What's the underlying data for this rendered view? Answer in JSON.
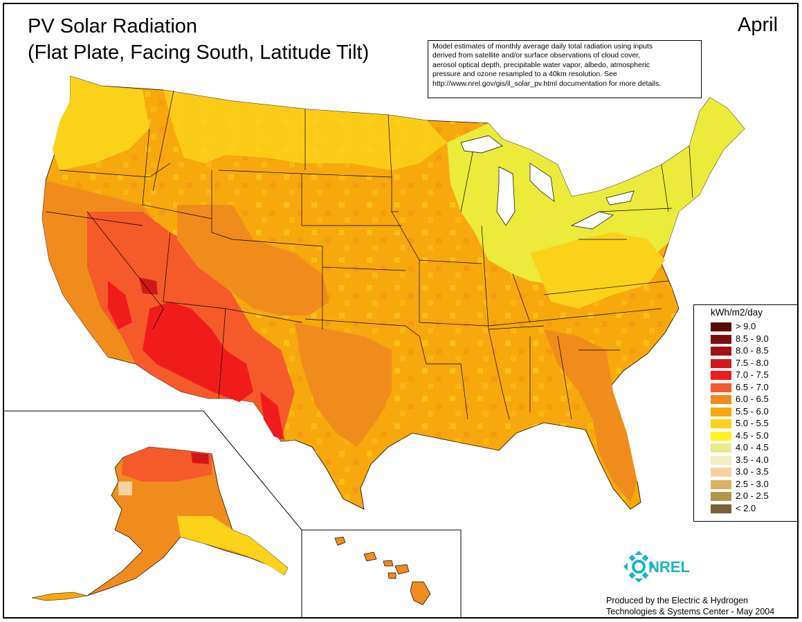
{
  "title": {
    "line1": "PV Solar Radiation",
    "line2": "(Flat Plate, Facing South, Latitude Tilt)"
  },
  "month": "April",
  "description": [
    "Model estimates of monthly average daily total radiation using inputs",
    "derived from satellite and/or surface observations of cloud cover,",
    "aerosol optical depth, precipitable water vapor, albedo, atmospheric",
    "pressure and ozone resampled to a 40km resolution.  See",
    "http://www.nrel.gov/gis/il_solar_pv.html documentation for more details."
  ],
  "legend": {
    "title": "kWh/m2/day",
    "items": [
      {
        "label": "> 9.0",
        "color": "#5a0a0a"
      },
      {
        "label": "8.5 - 9.0",
        "color": "#7d0e0e"
      },
      {
        "label": "8.0 - 8.5",
        "color": "#a50f0f"
      },
      {
        "label": "7.5 - 8.0",
        "color": "#d11818"
      },
      {
        "label": "7.0 - 7.5",
        "color": "#f01c1c"
      },
      {
        "label": "6.5 - 7.0",
        "color": "#f55a2a"
      },
      {
        "label": "6.0 - 6.5",
        "color": "#f08c1c"
      },
      {
        "label": "5.5 - 6.0",
        "color": "#f7a80c"
      },
      {
        "label": "5.0 - 5.5",
        "color": "#fad21a"
      },
      {
        "label": "4.5 - 5.0",
        "color": "#fff21f"
      },
      {
        "label": "4.0 - 4.5",
        "color": "#ecea8a"
      },
      {
        "label": "3.5 - 4.0",
        "color": "#f2eec2"
      },
      {
        "label": "3.0 - 3.5",
        "color": "#f7d2a0"
      },
      {
        "label": "2.5 - 3.0",
        "color": "#dcb062"
      },
      {
        "label": "2.0 - 2.5",
        "color": "#b4944a"
      },
      {
        "label": "< 2.0",
        "color": "#7a6038"
      }
    ]
  },
  "logo": {
    "text": "NREL",
    "color": "#1ab6c4"
  },
  "credit": {
    "line1": "Produced by the Electric & Hydrogen",
    "line2": "Technologies & Systems Center - May 2004"
  }
}
